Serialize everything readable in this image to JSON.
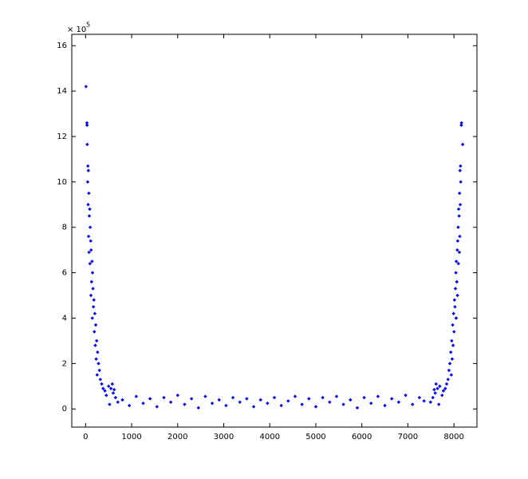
{
  "chart_data": {
    "type": "scatter",
    "y_multiplier": "× 10",
    "y_exponent": "5",
    "color": "#0000ff",
    "xlim": [
      -300,
      8500
    ],
    "ylim": [
      -80000,
      1650000
    ],
    "xticks": [
      0,
      1000,
      2000,
      3000,
      4000,
      5000,
      6000,
      7000,
      8000
    ],
    "yticks": [
      {
        "value": 0,
        "label": "0"
      },
      {
        "value": 200000,
        "label": "2"
      },
      {
        "value": 400000,
        "label": "4"
      },
      {
        "value": 600000,
        "label": "6"
      },
      {
        "value": 800000,
        "label": "8"
      },
      {
        "value": 1000000,
        "label": "10"
      },
      {
        "value": 1200000,
        "label": "12"
      },
      {
        "value": 1400000,
        "label": "14"
      },
      {
        "value": 1600000,
        "label": "16"
      }
    ],
    "x": [
      8,
      28,
      32,
      34,
      50,
      60,
      45,
      70,
      55,
      90,
      80,
      100,
      65,
      110,
      120,
      75,
      140,
      95,
      150,
      130,
      160,
      115,
      180,
      170,
      200,
      145,
      220,
      190,
      240,
      210,
      260,
      230,
      280,
      300,
      250,
      320,
      350,
      380,
      420,
      450,
      500,
      550,
      600,
      650,
      700,
      520,
      580,
      620,
      800,
      950,
      1100,
      1250,
      1400,
      1550,
      1700,
      1850,
      2000,
      2150,
      2300,
      2450,
      2600,
      2750,
      2900,
      3050,
      3200,
      3350,
      3500,
      3650,
      3800,
      3950,
      4100,
      4250,
      4400,
      4550,
      4700,
      4850,
      5000,
      5150,
      5300,
      5450,
      5600,
      5750,
      5900,
      6050,
      6200,
      6350,
      6500,
      6650,
      6800,
      6950,
      7100,
      7250,
      7350,
      8164,
      8160,
      8190,
      8142,
      8132,
      8147,
      8122,
      8137,
      8102,
      8112,
      8092,
      8127,
      8082,
      8072,
      8117,
      8052,
      8097,
      8042,
      8062,
      8032,
      8077,
      8012,
      8022,
      7992,
      8047,
      7972,
      8002,
      7952,
      7982,
      7932,
      7962,
      7912,
      7892,
      7942,
      7872,
      7842,
      7812,
      7772,
      7742,
      7692,
      7642,
      7592,
      7542,
      7492,
      7672,
      7612,
      7572
    ],
    "values": [
      1420000,
      1260000,
      1250000,
      1165000,
      1070000,
      1050000,
      1000000,
      950000,
      900000,
      880000,
      850000,
      800000,
      760000,
      740000,
      700000,
      690000,
      650000,
      640000,
      600000,
      560000,
      530000,
      500000,
      480000,
      450000,
      420000,
      400000,
      370000,
      340000,
      300000,
      280000,
      250000,
      220000,
      200000,
      170000,
      150000,
      130000,
      110000,
      90000,
      80000,
      60000,
      100000,
      90000,
      70000,
      50000,
      30000,
      20000,
      110000,
      85000,
      40000,
      15000,
      55000,
      25000,
      45000,
      10000,
      50000,
      30000,
      60000,
      20000,
      45000,
      5000,
      55000,
      25000,
      40000,
      15000,
      50000,
      30000,
      45000,
      10000,
      40000,
      25000,
      50000,
      15000,
      35000,
      55000,
      20000,
      45000,
      10000,
      50000,
      30000,
      55000,
      20000,
      40000,
      5000,
      50000,
      25000,
      55000,
      15000,
      45000,
      30000,
      60000,
      20000,
      50000,
      35000,
      1260000,
      1250000,
      1165000,
      1070000,
      1050000,
      1000000,
      950000,
      900000,
      880000,
      850000,
      800000,
      760000,
      740000,
      700000,
      690000,
      650000,
      640000,
      600000,
      560000,
      530000,
      500000,
      480000,
      450000,
      420000,
      400000,
      370000,
      340000,
      300000,
      280000,
      250000,
      220000,
      200000,
      170000,
      150000,
      130000,
      110000,
      90000,
      80000,
      60000,
      100000,
      90000,
      70000,
      50000,
      30000,
      20000,
      110000,
      85000
    ]
  }
}
